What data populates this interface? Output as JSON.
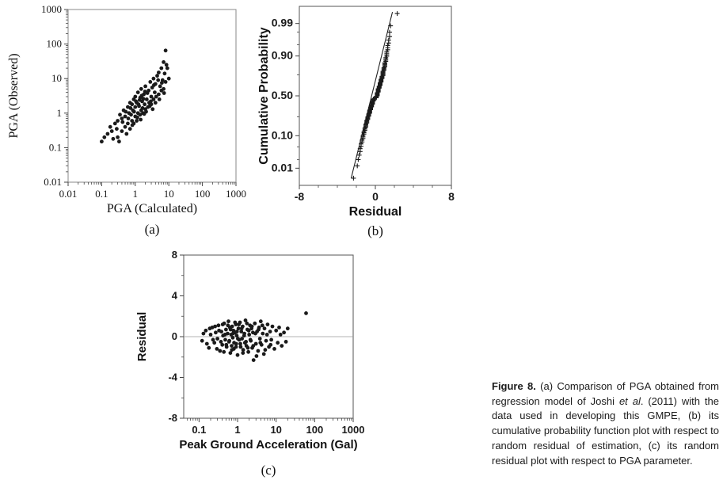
{
  "page": {
    "background": "#ffffff"
  },
  "colors": {
    "point": "#1a1a1a",
    "box_stroke": "#7a7a7a",
    "fit_line": "#222222",
    "zero_line": "#9a9a9a"
  },
  "caption": {
    "label": "Figure 8.",
    "part1": " (a) Comparison of PGA obtained from regression model of Joshi ",
    "etal": "et al",
    "part2": ". (2011) with the data used in developing this GMPE, (b) its cumulative probability function plot with respect to random residual of estimation, (c) its random residual plot with respect to PGA parameter."
  },
  "chart_data": [
    {
      "id": "a",
      "type": "scatter",
      "marker": "dot",
      "sublabel": "(a)",
      "xlabel": "PGA (Calculated)",
      "ylabel": "PGA (Observed)",
      "x_scale": "log",
      "y_scale": "log",
      "xlim": [
        0.01,
        1000
      ],
      "ylim": [
        0.01,
        1000
      ],
      "grid": false,
      "x_ticks": [
        {
          "v": 0.01,
          "l": "0.01"
        },
        {
          "v": 0.1,
          "l": "0.1"
        },
        {
          "v": 1,
          "l": "1"
        },
        {
          "v": 10,
          "l": "10"
        },
        {
          "v": 100,
          "l": "100"
        },
        {
          "v": 1000,
          "l": "1000"
        }
      ],
      "y_ticks": [
        {
          "v": 1000,
          "l": "1000"
        },
        {
          "v": 100,
          "l": "100"
        },
        {
          "v": 10,
          "l": "10"
        },
        {
          "v": 1,
          "l": "1"
        },
        {
          "v": 0.1,
          "l": "0.1"
        },
        {
          "v": 0.01,
          "l": "0.01"
        }
      ],
      "points": [
        [
          0.15,
          0.25
        ],
        [
          0.2,
          0.3
        ],
        [
          0.22,
          0.18
        ],
        [
          0.25,
          0.5
        ],
        [
          0.3,
          0.2
        ],
        [
          0.3,
          0.6
        ],
        [
          0.35,
          0.9
        ],
        [
          0.4,
          0.3
        ],
        [
          0.4,
          0.7
        ],
        [
          0.45,
          1.2
        ],
        [
          0.5,
          0.4
        ],
        [
          0.5,
          0.8
        ],
        [
          0.55,
          0.25
        ],
        [
          0.6,
          1.5
        ],
        [
          0.6,
          0.5
        ],
        [
          0.65,
          1.0
        ],
        [
          0.7,
          0.35
        ],
        [
          0.7,
          2.0
        ],
        [
          0.75,
          0.9
        ],
        [
          0.8,
          0.6
        ],
        [
          0.8,
          1.8
        ],
        [
          0.85,
          1.2
        ],
        [
          0.9,
          0.5
        ],
        [
          0.9,
          2.5
        ],
        [
          1.0,
          0.8
        ],
        [
          1.0,
          1.5
        ],
        [
          1.0,
          3.0
        ],
        [
          1.1,
          0.6
        ],
        [
          1.1,
          2.0
        ],
        [
          1.2,
          1.0
        ],
        [
          1.2,
          4.0
        ],
        [
          1.3,
          1.6
        ],
        [
          1.4,
          0.9
        ],
        [
          1.4,
          2.8
        ],
        [
          1.5,
          1.2
        ],
        [
          1.5,
          5.0
        ],
        [
          1.6,
          2.2
        ],
        [
          1.7,
          1.0
        ],
        [
          1.8,
          3.5
        ],
        [
          1.9,
          1.8
        ],
        [
          2.0,
          1.3
        ],
        [
          2.0,
          6.0
        ],
        [
          2.2,
          2.5
        ],
        [
          2.4,
          1.5
        ],
        [
          2.5,
          4.5
        ],
        [
          2.6,
          2.0
        ],
        [
          2.8,
          8.0
        ],
        [
          3.0,
          3.0
        ],
        [
          3.0,
          1.8
        ],
        [
          3.2,
          5.5
        ],
        [
          3.5,
          2.5
        ],
        [
          3.5,
          10
        ],
        [
          3.8,
          4.0
        ],
        [
          4.0,
          2.0
        ],
        [
          4.0,
          7.0
        ],
        [
          4.5,
          12
        ],
        [
          5.0,
          3.5
        ],
        [
          5.0,
          15
        ],
        [
          5.5,
          6.0
        ],
        [
          6.0,
          4.5
        ],
        [
          6.0,
          20
        ],
        [
          6.5,
          9.0
        ],
        [
          7.0,
          5.0
        ],
        [
          7.0,
          30
        ],
        [
          7.5,
          14
        ],
        [
          8.0,
          8.0
        ],
        [
          8.0,
          65
        ],
        [
          9.0,
          20
        ],
        [
          10,
          10
        ],
        [
          0.12,
          0.2
        ],
        [
          0.18,
          0.4
        ],
        [
          0.28,
          0.35
        ],
        [
          0.33,
          0.15
        ],
        [
          0.42,
          0.55
        ],
        [
          0.52,
          1.1
        ],
        [
          0.62,
          0.7
        ],
        [
          0.72,
          1.4
        ],
        [
          0.82,
          0.45
        ],
        [
          0.92,
          1.1
        ],
        [
          1.05,
          2.2
        ],
        [
          1.15,
          0.75
        ],
        [
          1.25,
          1.8
        ],
        [
          1.35,
          2.4
        ],
        [
          1.45,
          0.65
        ],
        [
          1.55,
          3.2
        ],
        [
          1.65,
          1.4
        ],
        [
          1.75,
          2.6
        ],
        [
          1.85,
          0.95
        ],
        [
          1.95,
          4.2
        ],
        [
          2.1,
          1.1
        ],
        [
          2.3,
          3.8
        ],
        [
          2.7,
          1.6
        ],
        [
          2.9,
          2.2
        ],
        [
          3.3,
          1.3
        ],
        [
          3.6,
          6.5
        ],
        [
          4.2,
          3.0
        ],
        [
          4.8,
          9.0
        ],
        [
          5.2,
          2.5
        ],
        [
          6.2,
          7.5
        ],
        [
          7.2,
          3.8
        ],
        [
          8.5,
          25
        ],
        [
          0.1,
          0.15
        ]
      ]
    },
    {
      "id": "b",
      "type": "scatter",
      "marker": "plus",
      "sublabel": "(b)",
      "xlabel": "Residual",
      "ylabel": "Cumulative Probability",
      "x_scale": "linear",
      "y_scale": "probit",
      "xlim": [
        -8,
        8
      ],
      "ylim": [
        0.002,
        0.998
      ],
      "grid": false,
      "x_ticks": [
        {
          "v": -8,
          "l": "-8"
        },
        {
          "v": 0,
          "l": "0"
        },
        {
          "v": 8,
          "l": "8"
        }
      ],
      "x_minor": [
        -6,
        -4,
        -2,
        2,
        4,
        6
      ],
      "y_ticks": [
        {
          "v": 0.99,
          "l": "0.99"
        },
        {
          "v": 0.9,
          "l": "0.90"
        },
        {
          "v": 0.5,
          "l": "0.50"
        },
        {
          "v": 0.1,
          "l": "0.10"
        },
        {
          "v": 0.01,
          "l": "0.01"
        }
      ],
      "y_minor": [
        0.02,
        0.05,
        0.25,
        0.75,
        0.95,
        0.98
      ],
      "fit_line": {
        "x": [
          -2.55,
          1.8
        ],
        "p": [
          0.004,
          0.9965
        ]
      },
      "residuals": [
        -0.4,
        0.6,
        -1.1,
        0.2,
        0.9,
        -0.6,
        0.4,
        -0.2,
        1.1,
        -1.4,
        0.5,
        -0.8,
        0.1,
        1.3,
        -0.3,
        0.7,
        -1.0,
        0.3,
        1.5,
        -0.5,
        0.9,
        -1.6,
        0.2,
        -0.9,
        1.0,
        -0.1,
        0.6,
        -1.2,
        0.4,
        1.2,
        -0.7,
        0.1,
        -1.8,
        0.8,
        -0.3,
        1.4,
        -1.0,
        0.5,
        -0.2,
        1.0,
        -1.3,
        0.3,
        -0.6,
        1.6,
        -0.9,
        0.7,
        -1.5,
        0.2,
        1.1,
        -0.4,
        0.8,
        -1.1,
        0.4,
        -2.3,
        1.3,
        -0.7,
        0.5,
        -1.4,
        0.9,
        -0.2,
        1.5,
        -0.8,
        0.3,
        -1.7,
        0.8,
        -0.4,
        1.2,
        -1.0,
        0.5,
        -0.3,
        1.0,
        -1.2,
        0.6,
        -0.6,
        0.9,
        -0.9,
        0.4,
        2.3,
        0.3,
        -0.7,
        0.8,
        -0.3,
        1.0,
        -1.2,
        0.6,
        -0.5,
        1.2,
        -1.5,
        0.2,
        -0.8,
        1.1,
        -0.4,
        0.7,
        -1.3,
        0.3,
        -0.6,
        1.4,
        -1.0,
        0.5,
        -0.2,
        1.2,
        -0.7,
        0.8,
        -1.6,
        0.1,
        -0.5,
        1.3,
        -1.1,
        0.6,
        -0.3,
        1.0,
        -0.9,
        0.3,
        -1.9,
        0.7,
        -0.6,
        1.1,
        -1.3,
        0.2,
        -0.8,
        0.2,
        -0.5,
        0.8
      ]
    },
    {
      "id": "c",
      "type": "scatter",
      "marker": "dot",
      "sublabel": "(c)",
      "xlabel": "Peak Ground Acceleration (Gal)",
      "ylabel": "Residual",
      "x_scale": "log",
      "y_scale": "linear",
      "xlim": [
        0.04,
        1000
      ],
      "ylim": [
        -8,
        8
      ],
      "grid": false,
      "zero_line": 0,
      "x_ticks": [
        {
          "v": 0.1,
          "l": "0.1"
        },
        {
          "v": 1,
          "l": "1"
        },
        {
          "v": 10,
          "l": "10"
        },
        {
          "v": 100,
          "l": "100"
        },
        {
          "v": 1000,
          "l": "1000"
        }
      ],
      "y_ticks": [
        {
          "v": 8,
          "l": "8"
        },
        {
          "v": 4,
          "l": "4"
        },
        {
          "v": 0,
          "l": "0"
        },
        {
          "v": -4,
          "l": "-4"
        },
        {
          "v": -8,
          "l": "-8"
        }
      ],
      "y_minor": [
        -6,
        -2,
        2,
        6
      ],
      "points": [
        [
          0.12,
          -0.4
        ],
        [
          0.15,
          0.6
        ],
        [
          0.18,
          -1.1
        ],
        [
          0.2,
          0.2
        ],
        [
          0.22,
          0.9
        ],
        [
          0.25,
          -0.6
        ],
        [
          0.27,
          0.4
        ],
        [
          0.3,
          -0.2
        ],
        [
          0.32,
          1.1
        ],
        [
          0.35,
          -1.4
        ],
        [
          0.38,
          0.5
        ],
        [
          0.4,
          -0.8
        ],
        [
          0.42,
          0.1
        ],
        [
          0.45,
          1.3
        ],
        [
          0.48,
          -0.3
        ],
        [
          0.5,
          0.7
        ],
        [
          0.52,
          -1.0
        ],
        [
          0.55,
          0.3
        ],
        [
          0.58,
          1.5
        ],
        [
          0.6,
          -0.5
        ],
        [
          0.63,
          0.9
        ],
        [
          0.65,
          -1.6
        ],
        [
          0.68,
          0.2
        ],
        [
          0.7,
          -0.9
        ],
        [
          0.72,
          1.0
        ],
        [
          0.75,
          -0.1
        ],
        [
          0.78,
          0.6
        ],
        [
          0.8,
          -1.2
        ],
        [
          0.85,
          0.4
        ],
        [
          0.9,
          1.2
        ],
        [
          0.92,
          -0.7
        ],
        [
          0.95,
          0.1
        ],
        [
          1.0,
          -1.8
        ],
        [
          1.05,
          0.8
        ],
        [
          1.1,
          -0.3
        ],
        [
          1.15,
          1.4
        ],
        [
          1.2,
          -1.0
        ],
        [
          1.25,
          0.5
        ],
        [
          1.3,
          -0.2
        ],
        [
          1.35,
          1.0
        ],
        [
          1.4,
          -1.3
        ],
        [
          1.5,
          0.3
        ],
        [
          1.55,
          -0.6
        ],
        [
          1.6,
          1.6
        ],
        [
          1.7,
          -0.9
        ],
        [
          1.8,
          0.7
        ],
        [
          1.9,
          -1.5
        ],
        [
          2.0,
          0.2
        ],
        [
          2.1,
          1.1
        ],
        [
          2.2,
          -0.4
        ],
        [
          2.3,
          0.8
        ],
        [
          2.4,
          -1.1
        ],
        [
          2.5,
          0.4
        ],
        [
          2.6,
          -2.3
        ],
        [
          2.8,
          1.3
        ],
        [
          3.0,
          -0.7
        ],
        [
          3.2,
          0.5
        ],
        [
          3.4,
          -1.4
        ],
        [
          3.6,
          0.9
        ],
        [
          3.8,
          -0.2
        ],
        [
          4.0,
          1.5
        ],
        [
          4.2,
          -0.8
        ],
        [
          4.5,
          0.3
        ],
        [
          4.8,
          -1.7
        ],
        [
          5.0,
          0.8
        ],
        [
          5.5,
          -0.4
        ],
        [
          6.0,
          1.2
        ],
        [
          6.5,
          -1.0
        ],
        [
          7.0,
          0.5
        ],
        [
          7.5,
          -0.3
        ],
        [
          8.0,
          1.0
        ],
        [
          9.0,
          -1.2
        ],
        [
          10,
          0.6
        ],
        [
          11,
          -0.6
        ],
        [
          12,
          0.9
        ],
        [
          14,
          -0.9
        ],
        [
          16,
          0.4
        ],
        [
          60,
          2.3
        ],
        [
          0.13,
          0.3
        ],
        [
          0.16,
          -0.7
        ],
        [
          0.19,
          0.8
        ],
        [
          0.23,
          -0.3
        ],
        [
          0.26,
          1.0
        ],
        [
          0.29,
          -1.2
        ],
        [
          0.33,
          0.6
        ],
        [
          0.37,
          -0.5
        ],
        [
          0.41,
          1.2
        ],
        [
          0.44,
          -1.5
        ],
        [
          0.47,
          0.2
        ],
        [
          0.51,
          -0.8
        ],
        [
          0.56,
          1.1
        ],
        [
          0.61,
          -0.4
        ],
        [
          0.66,
          0.7
        ],
        [
          0.71,
          -1.3
        ],
        [
          0.76,
          0.3
        ],
        [
          0.81,
          -0.6
        ],
        [
          0.86,
          1.4
        ],
        [
          0.91,
          -1.0
        ],
        [
          0.96,
          0.5
        ],
        [
          1.02,
          -0.2
        ],
        [
          1.08,
          1.2
        ],
        [
          1.18,
          -0.7
        ],
        [
          1.28,
          0.8
        ],
        [
          1.38,
          -1.6
        ],
        [
          1.48,
          0.1
        ],
        [
          1.65,
          -0.5
        ],
        [
          1.75,
          1.3
        ],
        [
          1.85,
          -1.1
        ],
        [
          1.95,
          0.6
        ],
        [
          2.15,
          -0.3
        ],
        [
          2.35,
          1.0
        ],
        [
          2.55,
          -0.9
        ],
        [
          2.9,
          0.3
        ],
        [
          3.1,
          -1.9
        ],
        [
          3.5,
          0.7
        ],
        [
          3.9,
          -0.6
        ],
        [
          4.4,
          1.1
        ],
        [
          5.2,
          -1.3
        ],
        [
          5.8,
          0.2
        ],
        [
          7.2,
          -0.8
        ],
        [
          13,
          0.2
        ],
        [
          18,
          -0.5
        ],
        [
          20,
          0.8
        ]
      ]
    }
  ]
}
